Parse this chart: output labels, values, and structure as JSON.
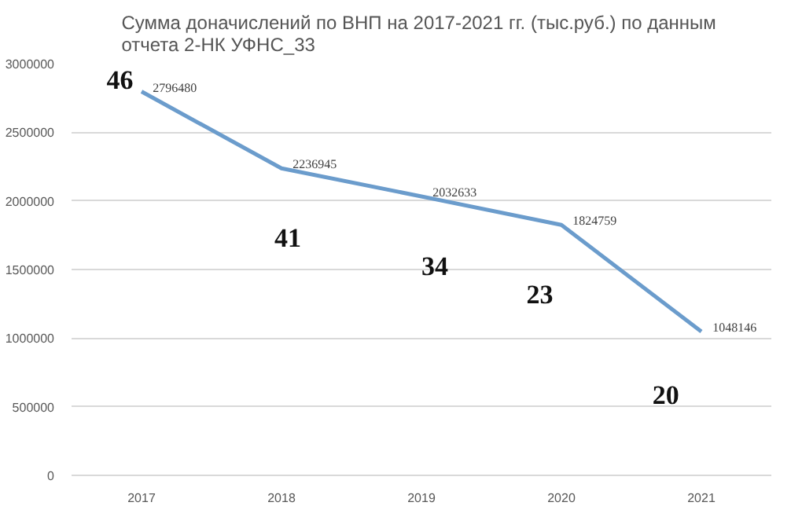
{
  "chart_data": {
    "type": "line",
    "title": "Сумма доначислений по ВНП на  2017-2021 гг. (тыс.руб.) по данным\nотчета 2-НК УФНС_33",
    "categories": [
      "2017",
      "2018",
      "2019",
      "2020",
      "2021"
    ],
    "series": [
      {
        "color": "#6b9ccc",
        "values": [
          2796480,
          2236945,
          2032633,
          1824759,
          1048146
        ]
      }
    ],
    "data_labels": true,
    "ylim": [
      0,
      3000000
    ],
    "yticks": [
      0,
      500000,
      1000000,
      1500000,
      2000000,
      2500000,
      3000000
    ],
    "grid": "y",
    "marker": "none",
    "line_style": "solid",
    "annotations": [
      {
        "text": "46",
        "x": "2017",
        "y": 2796480
      },
      {
        "text": "41",
        "x": "2018",
        "y": 2236945
      },
      {
        "text": "34",
        "x": "2019",
        "y": 2032633
      },
      {
        "text": "23",
        "x": "2020",
        "y": 1824759
      },
      {
        "text": "20",
        "x": "2021",
        "y": 1048146
      }
    ]
  }
}
